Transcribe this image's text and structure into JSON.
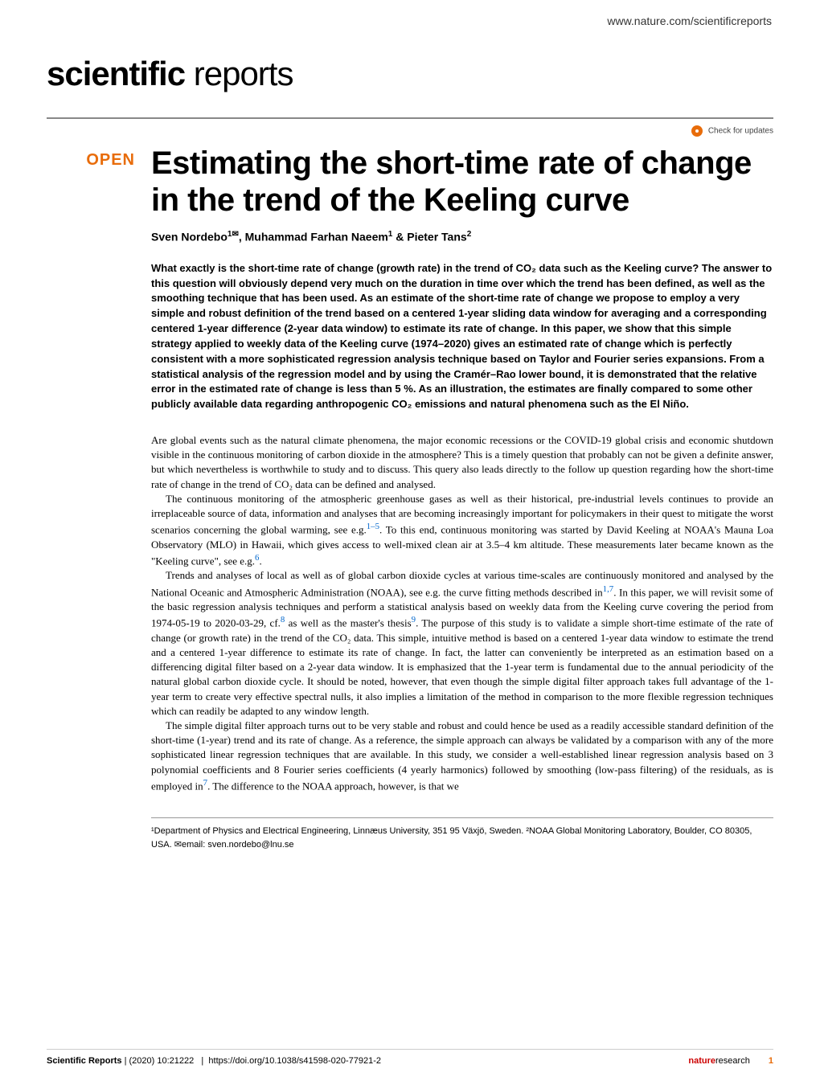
{
  "header": {
    "url": "www.nature.com/scientificreports"
  },
  "journal": {
    "name_bold": "scientific",
    "name_light": " reports"
  },
  "check_updates": {
    "label": "Check for updates"
  },
  "open_badge": "OPEN",
  "title": "Estimating the short-time rate of change in the trend of the Keeling curve",
  "authors_html": "Sven Nordebo<sup>1✉</sup>, Muhammad Farhan Naeem<sup>1</sup> & Pieter Tans<sup>2</sup>",
  "abstract": "What exactly is the short-time rate of change (growth rate) in the trend of CO₂ data such as the Keeling curve? The answer to this question will obviously depend very much on the duration in time over which the trend has been defined, as well as the smoothing technique that has been used. As an estimate of the short-time rate of change we propose to employ a very simple and robust definition of the trend based on a centered 1-year sliding data window for averaging and a corresponding centered 1-year difference (2-year data window) to estimate its rate of change. In this paper, we show that this simple strategy applied to weekly data of the Keeling curve (1974–2020) gives an estimated rate of change which is perfectly consistent with a more sophisticated regression analysis technique based on Taylor and Fourier series expansions. From a statistical analysis of the regression model and by using the Cramér–Rao lower bound, it is demonstrated that the relative error in the estimated rate of change is less than 5 %. As an illustration, the estimates are finally compared to some other publicly available data regarding anthropogenic CO₂ emissions and natural phenomena such as the El Niño.",
  "body": {
    "p1": "Are global events such as the natural climate phenomena, the major economic recessions or the COVID-19 global crisis and economic shutdown visible in the continuous monitoring of carbon dioxide in the atmosphere? This is a timely question that probably can not be given a definite answer, but which nevertheless is worthwhile to study and to discuss. This query also leads directly to the follow up question regarding how the short-time rate of change in the trend of CO₂ data can be defined and analysed.",
    "p2a": "The continuous monitoring of the atmospheric greenhouse gases as well as their historical, pre-industrial levels continues to provide an irreplaceable source of data, information and analyses that are becoming increasingly important for policymakers in their quest to mitigate the worst scenarios concerning the global warming, see e.g.",
    "p2_ref1": "1–5",
    "p2b": ". To this end, continuous monitoring was started by David Keeling at NOAA's Mauna Loa Observatory (MLO) in Hawaii, which gives access to well-mixed clean air at 3.5–4 km altitude. These measurements later became known as the \"Keeling curve\", see e.g.",
    "p2_ref2": "6",
    "p2c": ".",
    "p3a": "Trends and analyses of local as well as of global carbon dioxide cycles at various time-scales are continuously monitored and analysed by the National Oceanic and Atmospheric Administration (NOAA), see e.g. the curve fitting methods described in",
    "p3_ref1": "1,7",
    "p3b": ". In this paper, we will revisit some of the basic regression analysis techniques and perform a statistical analysis based on weekly data from the Keeling curve covering the period from 1974-05-19 to 2020-03-29, cf.",
    "p3_ref2": "8",
    "p3c": " as well as the master's thesis",
    "p3_ref3": "9",
    "p3d": ". The purpose of this study is to validate a simple short-time estimate of the rate of change (or growth rate) in the trend of the CO₂ data. This simple, intuitive method is based on a centered 1-year data window to estimate the trend and a centered 1-year difference to estimate its rate of change. In fact, the latter can conveniently be interpreted as an estimation based on a differencing digital filter based on a 2-year data window. It is emphasized that the 1-year term is fundamental due to the annual periodicity of the natural global carbon dioxide cycle. It should be noted, however, that even though the simple digital filter approach takes full advantage of the 1-year term to create very effective spectral nulls, it also implies a limitation of the method in comparison to the more flexible regression techniques which can readily be adapted to any window length.",
    "p4a": "The simple digital filter approach turns out to be very stable and robust and could hence be used as a readily accessible standard definition of the short-time (1-year) trend and its rate of change. As a reference, the simple approach can always be validated by a comparison with any of the more sophisticated linear regression techniques that are available. In this study, we consider a well-established linear regression analysis based on 3 polynomial coefficients and 8 Fourier series coefficients (4 yearly harmonics) followed by smoothing (low-pass filtering) of the residuals, as is employed in",
    "p4_ref1": "7",
    "p4b": ". The difference to the NOAA approach, however, is that we"
  },
  "affiliations": "¹Department of Physics and Electrical Engineering, Linnæus University, 351 95 Växjö, Sweden. ²NOAA Global Monitoring Laboratory, Boulder, CO 80305, USA. ✉email: sven.nordebo@lnu.se",
  "footer": {
    "journal": "Scientific Reports",
    "citation": "(2020) 10:21222",
    "doi": "https://doi.org/10.1038/s41598-020-77921-2",
    "publisher_bold": "nature",
    "publisher_rest": "research",
    "page": "1"
  }
}
